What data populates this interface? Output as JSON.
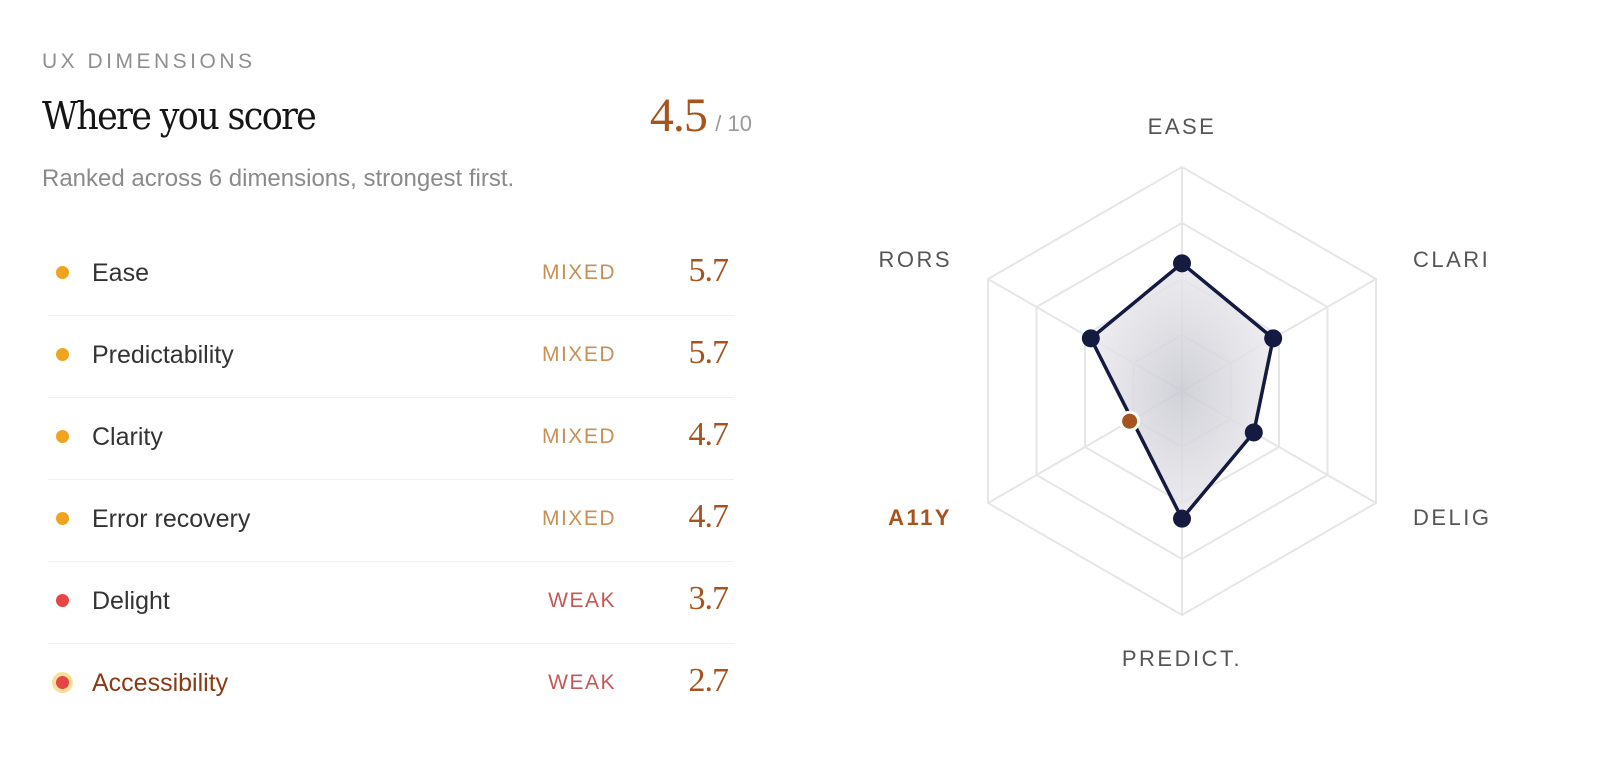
{
  "section": {
    "eyebrow": "UX DIMENSIONS",
    "title": "Where you score",
    "subtitle": "Ranked across 6 dimensions, strongest first.",
    "total_score": "4.5",
    "total_denominator": "/ 10"
  },
  "dimensions": [
    {
      "label": "Ease",
      "status": "MIXED",
      "score": "5.7",
      "level": "mixed"
    },
    {
      "label": "Predictability",
      "status": "MIXED",
      "score": "5.7",
      "level": "mixed"
    },
    {
      "label": "Clarity",
      "status": "MIXED",
      "score": "4.7",
      "level": "mixed"
    },
    {
      "label": "Error recovery",
      "status": "MIXED",
      "score": "4.7",
      "level": "mixed"
    },
    {
      "label": "Delight",
      "status": "WEAK",
      "score": "3.7",
      "level": "weak"
    },
    {
      "label": "Accessibility",
      "status": "WEAK",
      "score": "2.7",
      "level": "weak",
      "selected": true
    }
  ],
  "radar": {
    "max": 10,
    "rings": 4,
    "axes": [
      {
        "label": "EASE",
        "value": 5.7
      },
      {
        "label": "CLARI",
        "value": 4.7
      },
      {
        "label": "DELIG",
        "value": 3.7
      },
      {
        "label": "PREDICT.",
        "value": 5.7
      },
      {
        "label": "A11Y",
        "value": 2.7,
        "active": true
      },
      {
        "label": "RORS",
        "value": 4.7
      }
    ]
  },
  "colors": {
    "accent": "#a6531e",
    "mixed": "#f0a31f",
    "weak": "#e54545",
    "polygon_stroke": "#141a40",
    "highlight_ring": "#f7e19a"
  }
}
